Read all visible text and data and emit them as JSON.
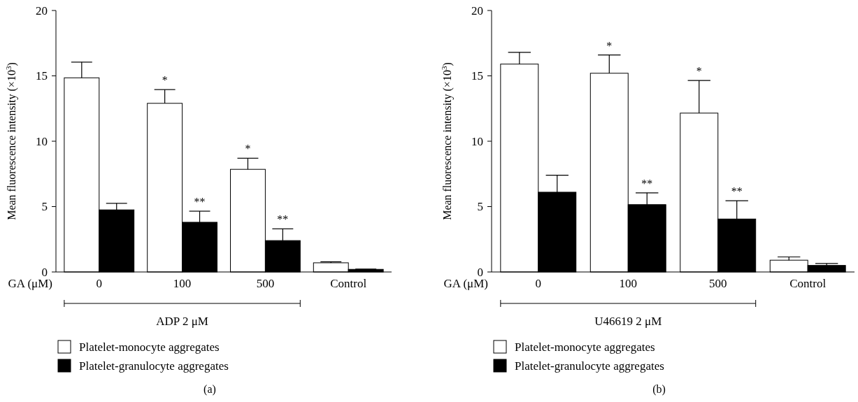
{
  "chart_data": [
    {
      "type": "bar",
      "xlabel": "GA (μM)",
      "ylabel": "Mean fluorescence intensity (×10$^{3}$)",
      "categories": [
        "0",
        "100",
        "500",
        "Control"
      ],
      "ylim": [
        0,
        20
      ],
      "yticks": [
        0,
        5,
        10,
        15,
        20
      ],
      "legend": "bottom",
      "grid": false,
      "series": [
        {
          "name": "Platelet-monocyte aggregates",
          "color": "#ffffff",
          "values": [
            14.85,
            12.9,
            7.85,
            0.7
          ],
          "errors": [
            [
              14.85,
              16.05
            ],
            [
              12.9,
              13.95
            ],
            [
              7.85,
              8.7
            ],
            [
              0.7,
              0.78
            ]
          ]
        },
        {
          "name": "Platelet-granulocyte aggregates",
          "color": "#000000",
          "values": [
            4.75,
            3.8,
            2.4,
            0.2
          ],
          "errors": [
            [
              4.75,
              5.25
            ],
            [
              3.8,
              4.65
            ],
            [
              2.4,
              3.3
            ],
            [
              0.2,
              0.22
            ]
          ]
        }
      ],
      "annotations": [
        {
          "text": "*",
          "x": "100",
          "y": 12.9
        },
        {
          "text": "**",
          "x": "100",
          "y": 3.8
        },
        {
          "text": "*",
          "x": "500",
          "y": 7.85
        },
        {
          "text": "**",
          "x": "500",
          "y": 2.4
        },
        "ADP 2 μM",
        "(a)"
      ]
    },
    {
      "type": "bar",
      "xlabel": "GA (μM)",
      "ylabel": "Mean fluorescence intensity (×10$^{3}$)",
      "categories": [
        "0",
        "100",
        "500",
        "Control"
      ],
      "ylim": [
        0,
        20
      ],
      "yticks": [
        0,
        5,
        10,
        15,
        20
      ],
      "legend": "bottom",
      "grid": false,
      "series": [
        {
          "name": "Platelet-monocyte aggregates",
          "color": "#ffffff",
          "values": [
            15.9,
            15.2,
            12.15,
            0.9
          ],
          "errors": [
            [
              15.9,
              16.8
            ],
            [
              15.2,
              16.6
            ],
            [
              12.15,
              14.65
            ],
            [
              0.9,
              1.15
            ]
          ]
        },
        {
          "name": "Platelet-granulocyte aggregates",
          "color": "#000000",
          "values": [
            6.1,
            5.15,
            4.05,
            0.5
          ],
          "errors": [
            [
              6.1,
              7.4
            ],
            [
              5.15,
              6.05
            ],
            [
              4.05,
              5.45
            ],
            [
              0.5,
              0.65
            ]
          ]
        }
      ],
      "annotations": [
        {
          "text": "*",
          "x": "100",
          "y": 15.2
        },
        {
          "text": "**",
          "x": "100",
          "y": 5.15
        },
        {
          "text": "**",
          "x": "500",
          "y": 4.05
        },
        "U46619 2 μM",
        "(b)",
        "*"
      ]
    }
  ]
}
